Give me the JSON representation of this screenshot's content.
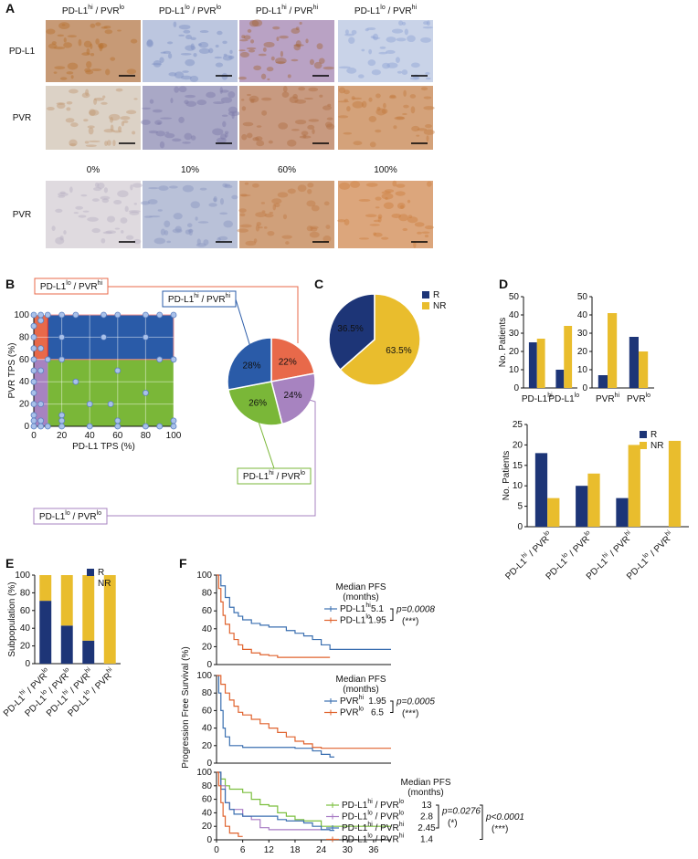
{
  "panel_a": {
    "letter": "A",
    "column_headers": [
      "PD-L1hi / PVRlo",
      "PD-L1lo / PVRlo",
      "PD-L1hi / PVRhi",
      "PD-L1lo / PVRhi"
    ],
    "row_labels": [
      "PD-L1",
      "PVR",
      "PVR"
    ],
    "percent_labels": [
      "0%",
      "10%",
      "60%",
      "100%"
    ]
  },
  "chart_data": [
    {
      "type": "scatter",
      "letter": "B",
      "xlabel": "PD-L1 TPS (%)",
      "ylabel": "PVR TPS (%)",
      "xlim": [
        0,
        100
      ],
      "ylim": [
        0,
        100
      ],
      "xticks": [
        0,
        20,
        40,
        60,
        80,
        100
      ],
      "yticks": [
        0,
        20,
        40,
        60,
        80,
        100
      ],
      "grid": true,
      "x_cutoff": 10,
      "y_cutoff": 60,
      "region_colors": [
        "#e8694a",
        "#2a5ba8",
        "#7ab738",
        "#a783c0"
      ],
      "color": "#a9c1ea",
      "x": [
        0,
        0,
        0,
        0,
        0,
        0,
        0,
        0,
        0,
        0,
        0,
        0,
        5,
        10,
        20,
        30,
        50,
        60,
        80,
        90,
        100,
        10,
        20,
        90,
        100,
        20,
        50,
        80,
        5,
        10,
        20,
        40,
        60,
        80,
        90,
        100,
        5,
        5,
        5,
        5,
        5,
        20,
        30,
        40,
        60,
        55,
        80,
        100,
        20,
        60
      ],
      "values": [
        0,
        5,
        10,
        20,
        30,
        40,
        50,
        60,
        70,
        80,
        90,
        100,
        100,
        100,
        100,
        100,
        100,
        100,
        100,
        100,
        100,
        60,
        60,
        60,
        60,
        80,
        80,
        80,
        0,
        0,
        0,
        0,
        0,
        0,
        0,
        0,
        95,
        70,
        50,
        20,
        5,
        10,
        40,
        20,
        50,
        20,
        30,
        5,
        5,
        5
      ]
    },
    {
      "type": "pie",
      "categories": [
        "PD-L1lo / PVRhi",
        "PD-L1lo / PVRlo",
        "PD-L1hi / PVRlo",
        "PD-L1hi / PVRhi"
      ],
      "values": [
        22,
        24,
        26,
        28
      ],
      "value_labels": [
        "22%",
        "24%",
        "26%",
        "28%"
      ],
      "colors": [
        "#e8694a",
        "#a783c0",
        "#7ab738",
        "#2a5ba8"
      ]
    },
    {
      "type": "pie",
      "letter": "C",
      "categories": [
        "R",
        "NR"
      ],
      "values": [
        36.5,
        63.5
      ],
      "value_labels": [
        "36.5%",
        "63.5%"
      ],
      "colors": [
        "#1d3577",
        "#e9bd2d"
      ]
    },
    {
      "type": "bar",
      "letter": "D",
      "ylabel": "No. Patients",
      "categories": [
        "PD-L1hi",
        "PD-L1lo"
      ],
      "ylim": [
        0,
        50
      ],
      "yticks": [
        0,
        10,
        20,
        30,
        40,
        50
      ],
      "series": [
        {
          "color": "#1d3577",
          "values": [
            25,
            10
          ]
        },
        {
          "color": "#e9bd2d",
          "values": [
            27,
            34
          ]
        }
      ]
    },
    {
      "type": "bar",
      "categories": [
        "PVRhi",
        "PVRlo"
      ],
      "ylim": [
        0,
        50
      ],
      "yticks": [
        0,
        10,
        20,
        30,
        40,
        50
      ],
      "series": [
        {
          "color": "#1d3577",
          "values": [
            7,
            28
          ]
        },
        {
          "color": "#e9bd2d",
          "values": [
            41,
            20
          ]
        }
      ]
    },
    {
      "type": "bar",
      "ylabel": "No. Patients",
      "categories": [
        "PD-L1hi / PVRlo",
        "PD-L1lo / PVRlo",
        "PD-L1hi / PVRhi",
        "PD-L1lo / PVRhi"
      ],
      "ylim": [
        0,
        25
      ],
      "yticks": [
        0,
        5,
        10,
        15,
        20,
        25
      ],
      "series": [
        {
          "name": "R",
          "color": "#1d3577",
          "values": [
            18,
            10,
            7,
            0
          ]
        },
        {
          "name": "NR",
          "color": "#e9bd2d",
          "values": [
            7,
            13,
            20,
            21
          ]
        }
      ]
    },
    {
      "type": "stacked_bar",
      "letter": "E",
      "ylabel": "Subpopulation (%)",
      "categories": [
        "PD-L1hi / PVRlo",
        "PD-L1lo / PVRlo",
        "PD-L1hi / PVRhi",
        "PD-L1lo / PVRhi"
      ],
      "ylim": [
        0,
        100
      ],
      "yticks": [
        0,
        20,
        40,
        60,
        80,
        100
      ],
      "series": [
        {
          "name": "R",
          "color": "#1d3577",
          "values": [
            71,
            43,
            26,
            0
          ]
        },
        {
          "name": "NR",
          "color": "#e9bd2d",
          "values": [
            29,
            57,
            74,
            100
          ]
        }
      ]
    },
    {
      "type": "line",
      "letter": "F",
      "ylabel": "Progression Free Survival (%)",
      "median_header": "Median PFS",
      "median_unit": "(months)",
      "xlim": [
        0,
        40
      ],
      "ylim": [
        0,
        100
      ],
      "yticks": [
        0,
        20,
        40,
        60,
        80,
        100
      ],
      "series": [
        {
          "name": "PD-L1hi",
          "color": "#3a6fb0",
          "median": 5.1,
          "x": [
            0,
            1,
            2,
            3,
            4,
            5,
            6,
            8,
            10,
            12,
            16,
            18,
            20,
            22,
            24,
            26,
            40
          ],
          "values": [
            100,
            88,
            75,
            64,
            58,
            54,
            50,
            46,
            44,
            42,
            38,
            35,
            32,
            28,
            22,
            17,
            17
          ]
        },
        {
          "name": "PD-L1lo",
          "color": "#e0632e",
          "median": 1.95,
          "x": [
            0,
            0.5,
            1,
            1.5,
            2,
            3,
            4,
            5,
            6,
            8,
            10,
            12,
            14,
            26
          ],
          "values": [
            100,
            85,
            70,
            55,
            45,
            35,
            28,
            22,
            17,
            13,
            11,
            10,
            8,
            8
          ]
        }
      ],
      "p_values": [
        {
          "label": "p=0.0008",
          "stars": "(***)"
        }
      ]
    },
    {
      "type": "line",
      "median_header": "Median PFS",
      "median_unit": "(months)",
      "xlim": [
        0,
        40
      ],
      "ylim": [
        0,
        100
      ],
      "yticks": [
        0,
        20,
        40,
        60,
        80,
        100
      ],
      "series": [
        {
          "name": "PVRhi",
          "color": "#3a6fb0",
          "median": 1.95,
          "x": [
            0,
            0.5,
            1,
            1.5,
            2,
            3,
            6,
            14,
            18,
            22,
            24,
            26,
            27
          ],
          "values": [
            100,
            80,
            60,
            40,
            30,
            20,
            18,
            18,
            17,
            14,
            10,
            7,
            7
          ]
        },
        {
          "name": "PVRlo",
          "color": "#e0632e",
          "median": 6.5,
          "x": [
            0,
            1,
            2,
            3,
            4,
            5,
            6,
            8,
            10,
            12,
            14,
            16,
            18,
            20,
            22,
            24,
            40
          ],
          "values": [
            100,
            90,
            80,
            72,
            65,
            58,
            55,
            50,
            45,
            40,
            35,
            30,
            25,
            22,
            18,
            17,
            17
          ]
        }
      ],
      "p_values": [
        {
          "label": "p=0.0005",
          "stars": "(***)"
        }
      ]
    },
    {
      "type": "line",
      "median_header": "Median PFS",
      "median_unit": "(months)",
      "xlim": [
        0,
        40
      ],
      "ylim": [
        0,
        100
      ],
      "xticks": [
        0,
        6,
        12,
        18,
        24,
        30,
        36
      ],
      "yticks": [
        0,
        20,
        40,
        60,
        80,
        100
      ],
      "series": [
        {
          "name": "PD-L1hi / PVRlo",
          "color": "#7cbf3f",
          "median": 13,
          "x": [
            0,
            1,
            2,
            3,
            6,
            8,
            10,
            12,
            14,
            16,
            18,
            20,
            24,
            40
          ],
          "values": [
            100,
            90,
            80,
            75,
            70,
            60,
            52,
            50,
            40,
            35,
            30,
            28,
            20,
            20
          ]
        },
        {
          "name": "PD-L1lo / PVRlo",
          "color": "#a77bc4",
          "median": 2.8,
          "x": [
            0,
            1,
            2,
            3,
            6,
            8,
            10,
            12,
            26
          ],
          "values": [
            100,
            80,
            55,
            45,
            35,
            30,
            18,
            15,
            15
          ]
        },
        {
          "name": "PD-L1hi / PVRhi",
          "color": "#3a6fb0",
          "median": 2.45,
          "x": [
            0,
            1,
            2,
            3,
            4,
            6,
            10,
            14,
            16,
            20,
            22,
            24,
            26,
            27
          ],
          "values": [
            100,
            75,
            55,
            45,
            38,
            35,
            35,
            30,
            28,
            25,
            20,
            15,
            14,
            14
          ]
        },
        {
          "name": "PD-L1lo / PVRhi",
          "color": "#e0632e",
          "median": 1.4,
          "x": [
            0,
            0.5,
            1,
            1.5,
            2,
            3,
            5,
            6
          ],
          "values": [
            100,
            80,
            55,
            35,
            20,
            10,
            5,
            5
          ]
        }
      ],
      "p_values": [
        {
          "label": "p=0.0276",
          "stars": "(*)"
        },
        {
          "label": "p<0.0001",
          "stars": "(***)"
        }
      ]
    }
  ]
}
